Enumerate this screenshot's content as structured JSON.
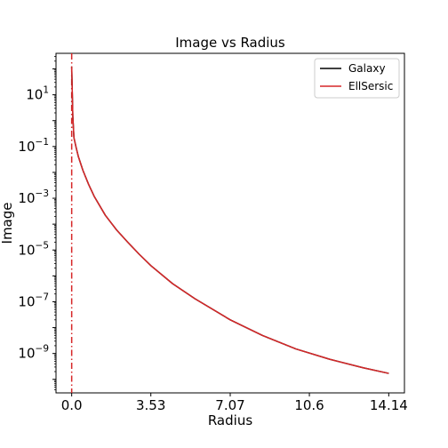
{
  "chart_data": {
    "type": "line",
    "title": "Image vs Radius",
    "xlabel": "Radius",
    "ylabel": "Image",
    "yscale": "log",
    "xlim": [
      -0.7,
      14.84
    ],
    "ylim": [
      3e-11,
      400
    ],
    "x_ticks": [
      0.0,
      3.53,
      7.07,
      10.6,
      14.14
    ],
    "x_tick_labels": [
      "0.0",
      "3.53",
      "7.07",
      "10.6",
      "14.14"
    ],
    "y_tick_exponents": [
      1,
      -1,
      -3,
      -5,
      -7,
      -9
    ],
    "grid": false,
    "legend_position": "top-right",
    "vline": {
      "x": 0.0,
      "color": "#d62728",
      "style": "dash-dot"
    },
    "series": [
      {
        "name": "Galaxy",
        "color": "#000000",
        "x": [
          0.0,
          0.05,
          0.1,
          0.2,
          0.3,
          0.5,
          0.75,
          1.0,
          1.5,
          2.0,
          2.5,
          3.0,
          3.53,
          4.5,
          5.5,
          7.07,
          8.5,
          10.0,
          11.5,
          13.0,
          14.14
        ],
        "y": [
          120,
          1.5,
          0.22,
          0.09,
          0.04,
          0.012,
          0.0035,
          0.0012,
          0.00022,
          6e-05,
          2e-05,
          7e-06,
          2.5e-06,
          5e-07,
          1.3e-07,
          2e-08,
          5e-09,
          1.5e-09,
          6e-10,
          2.8e-10,
          1.7e-10
        ]
      },
      {
        "name": "EllSersic",
        "color": "#d62728",
        "x": [
          0.0,
          0.05,
          0.1,
          0.2,
          0.3,
          0.5,
          0.75,
          1.0,
          1.5,
          2.0,
          2.5,
          3.0,
          3.53,
          4.5,
          5.5,
          7.07,
          8.5,
          10.0,
          11.5,
          13.0,
          14.14
        ],
        "y": [
          120,
          1.5,
          0.22,
          0.09,
          0.04,
          0.012,
          0.0035,
          0.0012,
          0.00022,
          6e-05,
          2e-05,
          7e-06,
          2.5e-06,
          5e-07,
          1.3e-07,
          2e-08,
          5e-09,
          1.5e-09,
          6e-10,
          2.8e-10,
          1.7e-10
        ]
      }
    ]
  }
}
